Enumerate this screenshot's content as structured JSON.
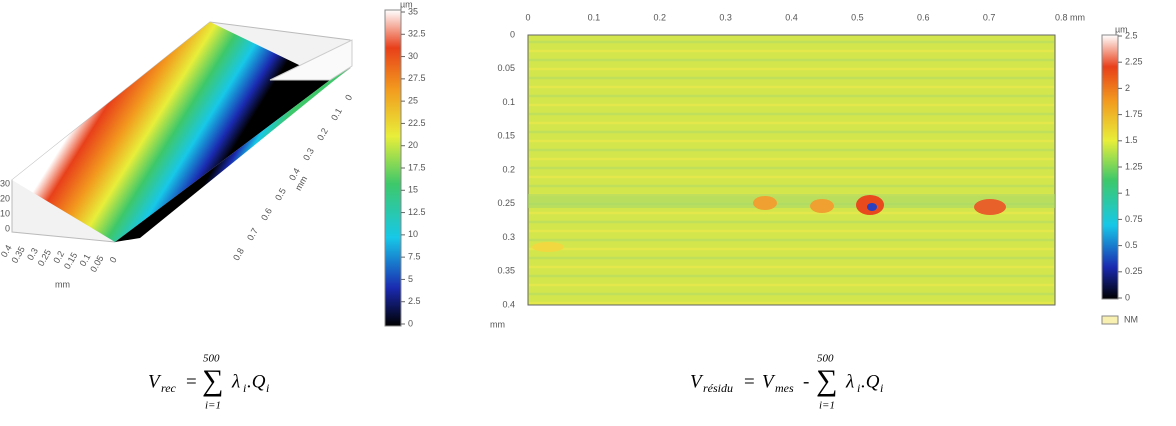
{
  "left_panel": {
    "surface_z_ticks": [
      "30",
      "20",
      "10",
      "0"
    ],
    "surface_x_ticks": [
      "0.4",
      "0.35",
      "0.3",
      "0.25",
      "0.2",
      "0.15",
      "0.1",
      "0.05",
      "0"
    ],
    "surface_x_unit": "mm",
    "surface_y_ticks": [
      "0",
      "0.1",
      "0.2",
      "0.3",
      "0.4",
      "0.5",
      "0.6",
      "0.7",
      "0.8"
    ],
    "surface_y_unit": "mm",
    "colorbar_unit": "µm",
    "colorbar_ticks": [
      "35",
      "32.5",
      "30",
      "27.5",
      "25",
      "22.5",
      "20",
      "17.5",
      "15",
      "12.5",
      "10",
      "7.5",
      "5",
      "2.5",
      "0"
    ]
  },
  "right_panel": {
    "x_ticks": [
      "0",
      "0.1",
      "0.2",
      "0.3",
      "0.4",
      "0.5",
      "0.6",
      "0.7",
      "0.8 mm"
    ],
    "y_ticks": [
      "0",
      "0.05",
      "0.1",
      "0.15",
      "0.2",
      "0.25",
      "0.3",
      "0.35",
      "0.4"
    ],
    "y_unit": "mm",
    "colorbar_unit": "µm",
    "colorbar_ticks": [
      "2.5",
      "2.25",
      "2",
      "1.75",
      "1.5",
      "1.25",
      "1",
      "0.75",
      "0.5",
      "0.25",
      "0"
    ],
    "legend_nm": "NM"
  },
  "equations": [
    {
      "lhs": "V",
      "lhs_sub": "rec",
      "equals": "=",
      "sum": "∑",
      "sum_upper": "500",
      "sum_lower": "i=1",
      "term": "λ",
      "term_sub": "i",
      "term2": ".Q",
      "term2_sub": "i"
    },
    {
      "lhs": "V",
      "lhs_sub": "résidu",
      "equals": "=",
      "mes": "V",
      "mes_sub": "mes",
      "minus": "-",
      "sum": "∑",
      "sum_upper": "500",
      "sum_lower": "i=1",
      "term": "λ",
      "term_sub": "i",
      "term2": ".Q",
      "term2_sub": "i"
    }
  ]
}
